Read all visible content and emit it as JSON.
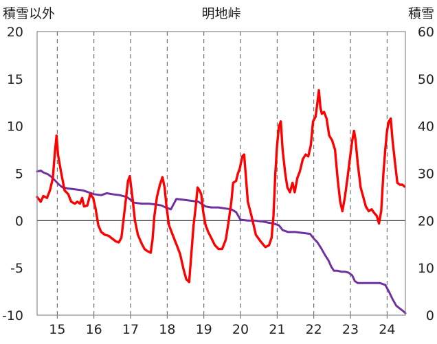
{
  "chart_data": {
    "type": "line",
    "title": "明地峠",
    "left_axis_label": "積雪以外",
    "right_axis_label": "積雪",
    "left_axis": {
      "range": [
        -10,
        20
      ],
      "ticks": [
        "20",
        "15",
        "10",
        "5",
        "0",
        "-5",
        "-10"
      ],
      "tick_values": [
        20,
        15,
        10,
        5,
        0,
        -5,
        -10
      ]
    },
    "right_axis": {
      "range": [
        0,
        60
      ],
      "ticks": [
        "60",
        "50",
        "40",
        "30",
        "20",
        "10",
        "0"
      ],
      "tick_values": [
        60,
        50,
        40,
        30,
        20,
        10,
        0
      ]
    },
    "x_axis": {
      "range": [
        14.45,
        24.5
      ],
      "tick_labels": [
        "15",
        "16",
        "17",
        "18",
        "19",
        "20",
        "21",
        "22",
        "23",
        "24"
      ],
      "tick_values": [
        15,
        16,
        17,
        18,
        19,
        20,
        21,
        22,
        23,
        24
      ]
    },
    "grid": {
      "vertical_dashed": true,
      "horizontal": "none",
      "zero_line": true
    },
    "series": [
      {
        "axis": "left",
        "color": "#ff0000",
        "points": [
          [
            14.45,
            2.5
          ],
          [
            14.55,
            2.0
          ],
          [
            14.62,
            2.6
          ],
          [
            14.72,
            2.4
          ],
          [
            14.8,
            3.2
          ],
          [
            14.88,
            4.5
          ],
          [
            14.93,
            7.0
          ],
          [
            14.98,
            9.0
          ],
          [
            15.02,
            7.0
          ],
          [
            15.1,
            5.2
          ],
          [
            15.2,
            3.2
          ],
          [
            15.3,
            2.8
          ],
          [
            15.38,
            2.0
          ],
          [
            15.48,
            1.8
          ],
          [
            15.55,
            2.0
          ],
          [
            15.62,
            1.8
          ],
          [
            15.68,
            2.4
          ],
          [
            15.73,
            1.5
          ],
          [
            15.82,
            1.6
          ],
          [
            15.9,
            2.8
          ],
          [
            15.98,
            2.4
          ],
          [
            16.05,
            1.2
          ],
          [
            16.12,
            -0.5
          ],
          [
            16.2,
            -1.2
          ],
          [
            16.3,
            -1.5
          ],
          [
            16.4,
            -1.6
          ],
          [
            16.5,
            -1.9
          ],
          [
            16.6,
            -2.2
          ],
          [
            16.68,
            -2.3
          ],
          [
            16.75,
            -1.8
          ],
          [
            16.82,
            0.5
          ],
          [
            16.88,
            2.5
          ],
          [
            16.93,
            4.2
          ],
          [
            16.98,
            4.7
          ],
          [
            17.05,
            2.5
          ],
          [
            17.12,
            0.0
          ],
          [
            17.2,
            -1.5
          ],
          [
            17.3,
            -2.4
          ],
          [
            17.38,
            -3.0
          ],
          [
            17.45,
            -3.2
          ],
          [
            17.55,
            -3.4
          ],
          [
            17.6,
            -2.0
          ],
          [
            17.65,
            0.5
          ],
          [
            17.72,
            2.5
          ],
          [
            17.8,
            3.8
          ],
          [
            17.87,
            4.6
          ],
          [
            17.93,
            3.5
          ],
          [
            17.98,
            1.5
          ],
          [
            18.05,
            -0.5
          ],
          [
            18.15,
            -1.5
          ],
          [
            18.25,
            -2.5
          ],
          [
            18.35,
            -3.5
          ],
          [
            18.45,
            -5.2
          ],
          [
            18.52,
            -6.2
          ],
          [
            18.6,
            -6.5
          ],
          [
            18.66,
            -3.5
          ],
          [
            18.72,
            -0.5
          ],
          [
            18.78,
            1.5
          ],
          [
            18.83,
            3.5
          ],
          [
            18.88,
            3.2
          ],
          [
            18.93,
            2.8
          ],
          [
            18.98,
            1.0
          ],
          [
            19.05,
            -0.5
          ],
          [
            19.12,
            -1.2
          ],
          [
            19.2,
            -1.8
          ],
          [
            19.3,
            -2.6
          ],
          [
            19.4,
            -3.0
          ],
          [
            19.5,
            -3.0
          ],
          [
            19.6,
            -2.0
          ],
          [
            19.68,
            0.0
          ],
          [
            19.75,
            2.0
          ],
          [
            19.8,
            4.0
          ],
          [
            19.88,
            4.2
          ],
          [
            19.93,
            5.0
          ],
          [
            19.98,
            5.5
          ],
          [
            20.05,
            6.8
          ],
          [
            20.1,
            7.0
          ],
          [
            20.14,
            5.0
          ],
          [
            20.2,
            2.0
          ],
          [
            20.3,
            0.5
          ],
          [
            20.42,
            -1.5
          ],
          [
            20.55,
            -2.2
          ],
          [
            20.68,
            -2.8
          ],
          [
            20.78,
            -2.6
          ],
          [
            20.85,
            -1.8
          ],
          [
            20.9,
            0.5
          ],
          [
            20.95,
            5.0
          ],
          [
            21.0,
            8.0
          ],
          [
            21.05,
            10.0
          ],
          [
            21.1,
            10.5
          ],
          [
            21.15,
            7.5
          ],
          [
            21.22,
            5.0
          ],
          [
            21.28,
            3.5
          ],
          [
            21.35,
            3.0
          ],
          [
            21.42,
            4.0
          ],
          [
            21.48,
            3.0
          ],
          [
            21.55,
            4.5
          ],
          [
            21.62,
            5.2
          ],
          [
            21.7,
            6.5
          ],
          [
            21.78,
            7.0
          ],
          [
            21.85,
            6.8
          ],
          [
            21.92,
            8.0
          ],
          [
            21.98,
            10.5
          ],
          [
            22.05,
            11.0
          ],
          [
            22.1,
            12.5
          ],
          [
            22.14,
            13.8
          ],
          [
            22.18,
            12.0
          ],
          [
            22.22,
            11.3
          ],
          [
            22.28,
            11.5
          ],
          [
            22.35,
            10.8
          ],
          [
            22.42,
            9.0
          ],
          [
            22.5,
            8.5
          ],
          [
            22.58,
            7.5
          ],
          [
            22.65,
            4.5
          ],
          [
            22.72,
            2.0
          ],
          [
            22.78,
            1.0
          ],
          [
            22.85,
            2.5
          ],
          [
            22.92,
            4.5
          ],
          [
            23.0,
            7.0
          ],
          [
            23.05,
            8.5
          ],
          [
            23.1,
            9.5
          ],
          [
            23.14,
            8.5
          ],
          [
            23.2,
            6.0
          ],
          [
            23.28,
            3.5
          ],
          [
            23.35,
            2.5
          ],
          [
            23.42,
            1.5
          ],
          [
            23.5,
            1.0
          ],
          [
            23.58,
            1.2
          ],
          [
            23.65,
            0.8
          ],
          [
            23.72,
            0.5
          ],
          [
            23.78,
            -0.3
          ],
          [
            23.84,
            1.0
          ],
          [
            23.9,
            5.0
          ],
          [
            23.95,
            7.5
          ],
          [
            24.0,
            9.5
          ],
          [
            24.05,
            10.5
          ],
          [
            24.1,
            10.8
          ],
          [
            24.15,
            8.5
          ],
          [
            24.22,
            6.0
          ],
          [
            24.28,
            4.0
          ],
          [
            24.35,
            3.8
          ],
          [
            24.42,
            3.8
          ],
          [
            24.48,
            3.6
          ]
        ]
      },
      {
        "axis": "right",
        "color": "#7030a0",
        "points": [
          [
            14.45,
            30.4
          ],
          [
            14.55,
            30.6
          ],
          [
            14.62,
            30.2
          ],
          [
            14.75,
            29.8
          ],
          [
            14.85,
            29.2
          ],
          [
            14.95,
            28.4
          ],
          [
            15.05,
            27.6
          ],
          [
            15.15,
            27.0
          ],
          [
            15.3,
            26.8
          ],
          [
            15.5,
            26.6
          ],
          [
            15.7,
            26.4
          ],
          [
            15.85,
            26.0
          ],
          [
            16.0,
            25.6
          ],
          [
            16.2,
            25.4
          ],
          [
            16.35,
            25.8
          ],
          [
            16.5,
            25.6
          ],
          [
            16.7,
            25.4
          ],
          [
            16.9,
            25.0
          ],
          [
            17.0,
            24.4
          ],
          [
            17.1,
            23.8
          ],
          [
            17.3,
            23.6
          ],
          [
            17.5,
            23.6
          ],
          [
            17.7,
            23.4
          ],
          [
            17.85,
            23.2
          ],
          [
            17.95,
            22.8
          ],
          [
            18.1,
            22.4
          ],
          [
            18.25,
            24.6
          ],
          [
            18.45,
            24.4
          ],
          [
            18.65,
            24.2
          ],
          [
            18.85,
            24.0
          ],
          [
            19.05,
            23.0
          ],
          [
            19.2,
            22.8
          ],
          [
            19.4,
            22.8
          ],
          [
            19.55,
            22.6
          ],
          [
            19.75,
            22.4
          ],
          [
            19.88,
            21.8
          ],
          [
            20.0,
            20.2
          ],
          [
            20.2,
            20.0
          ],
          [
            20.4,
            20.0
          ],
          [
            20.6,
            19.8
          ],
          [
            20.75,
            19.6
          ],
          [
            20.9,
            19.4
          ],
          [
            21.05,
            19.0
          ],
          [
            21.15,
            18.0
          ],
          [
            21.3,
            17.6
          ],
          [
            21.5,
            17.6
          ],
          [
            21.7,
            17.4
          ],
          [
            21.9,
            17.2
          ],
          [
            22.0,
            16.2
          ],
          [
            22.1,
            15.4
          ],
          [
            22.2,
            14.2
          ],
          [
            22.3,
            12.8
          ],
          [
            22.4,
            11.6
          ],
          [
            22.48,
            10.2
          ],
          [
            22.55,
            9.4
          ],
          [
            22.65,
            9.4
          ],
          [
            22.75,
            9.2
          ],
          [
            22.85,
            9.2
          ],
          [
            22.95,
            9.0
          ],
          [
            23.05,
            8.4
          ],
          [
            23.12,
            7.2
          ],
          [
            23.2,
            6.8
          ],
          [
            23.4,
            6.8
          ],
          [
            23.6,
            6.8
          ],
          [
            23.8,
            6.8
          ],
          [
            23.95,
            6.4
          ],
          [
            24.05,
            5.0
          ],
          [
            24.15,
            3.4
          ],
          [
            24.25,
            2.0
          ],
          [
            24.35,
            1.4
          ],
          [
            24.45,
            0.8
          ],
          [
            24.5,
            0.4
          ]
        ]
      }
    ]
  }
}
